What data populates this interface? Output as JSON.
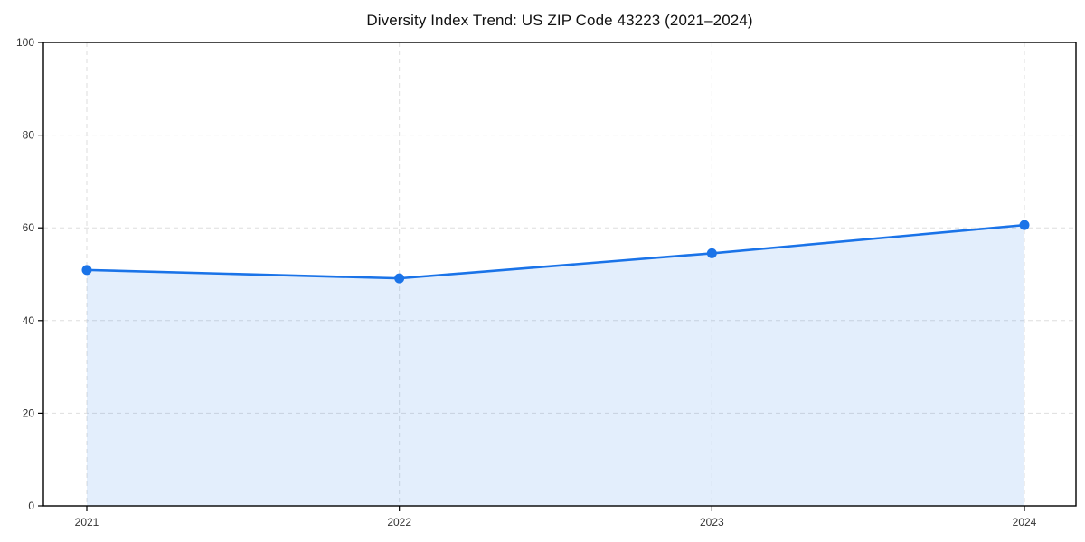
{
  "chart_data": {
    "type": "area",
    "title": "Diversity Index Trend: US ZIP Code 43223 (2021–2024)",
    "categories": [
      "2021",
      "2022",
      "2023",
      "2024"
    ],
    "series": [
      {
        "name": "Diversity Index",
        "values": [
          50.9,
          49.1,
          54.5,
          60.6
        ]
      }
    ],
    "xlabel": "",
    "ylabel": "",
    "ylim": [
      0,
      100
    ],
    "yticks": [
      0,
      20,
      40,
      60,
      80,
      100
    ],
    "grid": "dashed horizontal and vertical",
    "legend_position": "none",
    "colors": {
      "line": "#1a73e8",
      "marker": "#1a73e8",
      "fill": "rgba(26,115,232,0.12)",
      "grid": "#dedede",
      "spine": "#000000",
      "tick_label": "#333333",
      "title": "#111111",
      "background": "#ffffff"
    }
  }
}
